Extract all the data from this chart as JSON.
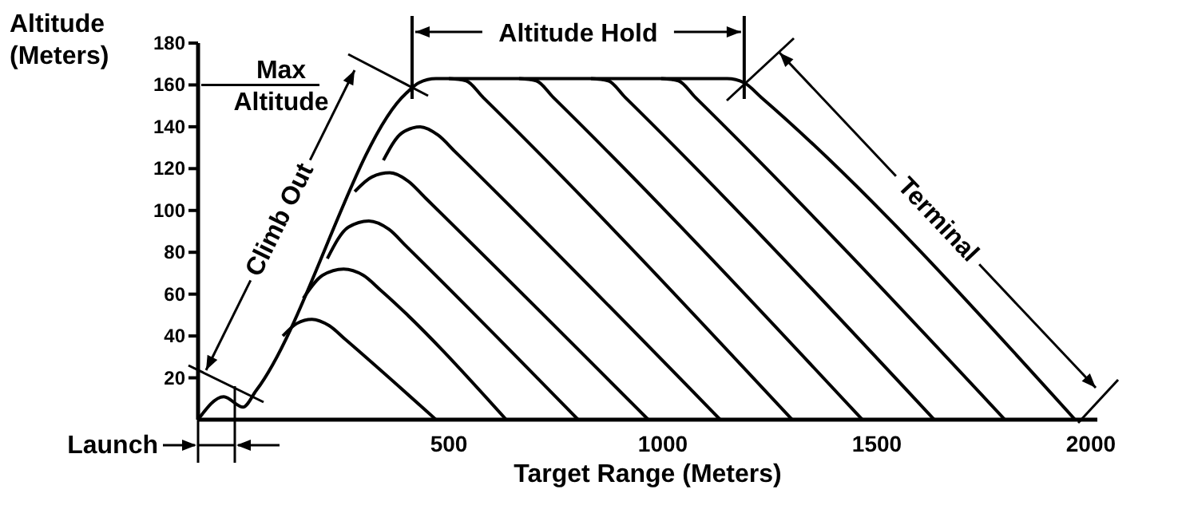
{
  "chart_data": {
    "type": "line",
    "xlabel": "Target Range (Meters)",
    "ylabel": "Altitude (Meters)",
    "xlim": [
      -86,
      2015
    ],
    "ylim": [
      0,
      180
    ],
    "xticks": [
      500,
      1000,
      1500,
      2000
    ],
    "yticks": [
      20,
      40,
      60,
      80,
      100,
      120,
      140,
      160,
      180
    ],
    "marker": "none",
    "line_style": "solid",
    "series": [
      {
        "color": "#000000",
        "x": [
          -86,
          -26,
          19,
          50,
          400,
          430,
          470,
          1150,
          1190,
          1230,
          1963
        ],
        "values": [
          0,
          11,
          6,
          14,
          156,
          161,
          163,
          163,
          161,
          154,
          0
        ]
      },
      {
        "color": "#000000",
        "x": [
          112,
          145,
          180,
          220,
          260,
          470
        ],
        "values": [
          40,
          46,
          48,
          45,
          38,
          0
        ]
      },
      {
        "color": "#000000",
        "x": [
          160,
          205,
          254,
          300,
          340,
          634
        ],
        "values": [
          58,
          69,
          72,
          69,
          62,
          0
        ]
      },
      {
        "color": "#000000",
        "x": [
          216,
          265,
          313,
          360,
          400,
          802
        ],
        "values": [
          77,
          92,
          95,
          91,
          83,
          0
        ]
      },
      {
        "color": "#000000",
        "x": [
          280,
          320,
          362,
          405,
          445,
          966
        ],
        "values": [
          109,
          116,
          118,
          114,
          106,
          0
        ]
      },
      {
        "color": "#000000",
        "x": [
          347,
          390,
          433,
          475,
          515,
          1134
        ],
        "values": [
          124,
          137,
          140,
          136,
          128,
          0
        ]
      },
      {
        "color": "#000000",
        "x": [
          500,
          540,
          580,
          1302
        ],
        "values": [
          163,
          162,
          154,
          0
        ]
      },
      {
        "color": "#000000",
        "x": [
          664,
          704,
          744,
          1466
        ],
        "values": [
          163,
          162,
          154,
          0
        ]
      },
      {
        "color": "#000000",
        "x": [
          832,
          872,
          912,
          1634
        ],
        "values": [
          163,
          162,
          154,
          0
        ]
      },
      {
        "color": "#000000",
        "x": [
          996,
          1036,
          1076,
          1799
        ],
        "values": [
          163,
          162,
          154,
          0
        ]
      }
    ],
    "annotations": [
      "Altitude Hold",
      "Max Altitude",
      "Climb Out",
      "Terminal",
      "Launch"
    ]
  }
}
